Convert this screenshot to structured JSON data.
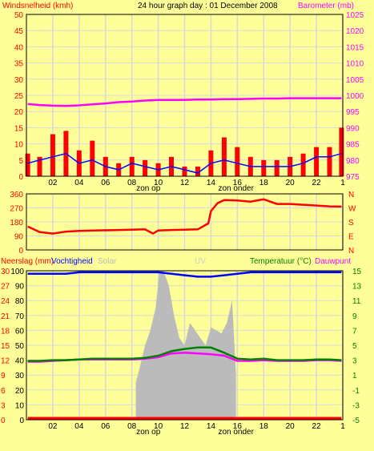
{
  "header": {
    "left_label": "Windsnelheid (kmh)",
    "title": "24 hour graph day : 01 December 2008",
    "right_label": "Barometer (mb)"
  },
  "colors": {
    "background": "#ffff99",
    "plot_background": "#ffff99",
    "grid": "#d8d8d8",
    "frame": "#000000",
    "wind_gust": "#ff0000",
    "wind_avg": "#0000ff",
    "barometer": "#ff00ff",
    "direction": "#ff0000",
    "rain": "#ff0000",
    "humidity": "#0000ff",
    "solar": "#bbbbbb",
    "uv": "#cccccc",
    "temperature": "#008000",
    "dewpoint": "#ff00ff",
    "left_text": "#ff0000",
    "right_text_barometer": "#ff00ff",
    "right_text_temp": "#008000"
  },
  "x_axis": {
    "tick_labels": [
      "02",
      "04",
      "06",
      "08",
      "10",
      "12",
      "14",
      "16",
      "18",
      "20",
      "22",
      "1"
    ],
    "sunrise_label": "zon op",
    "sunset_label": "zon onder",
    "sunrise_hour": 8.4,
    "sunset_hour": 15.9
  },
  "chart_data": [
    {
      "type": "line",
      "name": "wind-barometer",
      "x_hours": [
        0.1,
        1,
        2,
        3,
        4,
        5,
        6,
        7,
        8,
        9,
        10,
        11,
        12,
        13,
        14,
        15,
        16,
        17,
        18,
        19,
        20,
        21,
        22,
        23,
        23.9
      ],
      "left_axis": {
        "label": "Windsnelheid (kmh)",
        "ylim": [
          0,
          50
        ],
        "ticks": [
          0,
          5,
          10,
          15,
          20,
          25,
          30,
          35,
          40,
          45,
          50
        ]
      },
      "right_axis": {
        "label": "Barometer (mb)",
        "ylim": [
          975,
          1025
        ],
        "ticks": [
          975,
          980,
          985,
          990,
          995,
          1000,
          1005,
          1010,
          1015,
          1020,
          1025
        ]
      },
      "series": [
        {
          "name": "Windsnelheid",
          "axis": "left",
          "color": "#ff0000",
          "render": "bars",
          "values": [
            7,
            6,
            13,
            14,
            8,
            11,
            6,
            4,
            6,
            5,
            4,
            6,
            3,
            3,
            8,
            12,
            9,
            6,
            5,
            5,
            6,
            7,
            9,
            9,
            15
          ]
        },
        {
          "name": "Gemiddelde wind",
          "axis": "left",
          "color": "#0000ff",
          "render": "line",
          "values": [
            4,
            5,
            6,
            7,
            4,
            5,
            3,
            2,
            4,
            3,
            2,
            3,
            2,
            1,
            4,
            5,
            4,
            3,
            3,
            3,
            3,
            4,
            6,
            6,
            7
          ]
        },
        {
          "name": "Barometer",
          "axis": "right",
          "color": "#ff00ff",
          "render": "line",
          "values": [
            997.3,
            997.0,
            996.8,
            996.7,
            996.9,
            997.2,
            997.5,
            997.9,
            998.1,
            998.4,
            998.6,
            998.6,
            998.6,
            998.7,
            998.7,
            998.8,
            998.8,
            998.9,
            999.0,
            999.0,
            999.1,
            999.1,
            999.1,
            999.1,
            999.1
          ]
        }
      ]
    },
    {
      "type": "line",
      "name": "wind-direction",
      "x_hours": [
        0.1,
        1,
        2,
        3,
        4,
        5,
        6,
        7,
        8,
        9,
        9.6,
        10,
        11,
        12,
        13,
        13.8,
        14,
        14.5,
        15,
        16,
        17,
        18,
        19,
        20,
        21,
        22,
        23,
        23.9
      ],
      "left_axis": {
        "ylim": [
          0,
          360
        ],
        "ticks": [
          0,
          90,
          180,
          270,
          360
        ]
      },
      "right_axis": {
        "letters": [
          "N",
          "W",
          "S",
          "E",
          "N"
        ]
      },
      "series": [
        {
          "name": "Windrichting",
          "color": "#ff0000",
          "values": [
            150,
            115,
            105,
            118,
            122,
            125,
            126,
            128,
            130,
            132,
            105,
            125,
            128,
            130,
            132,
            170,
            250,
            300,
            320,
            318,
            310,
            325,
            295,
            295,
            290,
            285,
            280,
            278
          ]
        }
      ]
    },
    {
      "type": "line",
      "name": "rain-humidity-temperature",
      "x_hours": [
        0.1,
        1,
        2,
        3,
        4,
        5,
        6,
        7,
        8,
        9,
        10,
        11,
        12,
        13,
        14,
        15,
        16,
        17,
        18,
        19,
        20,
        21,
        22,
        23,
        23.9
      ],
      "header_labels": {
        "rain": "Neerslag (mm)",
        "humidity": "Vochtigheid",
        "solar": "Solar",
        "uv": "UV",
        "temperature": "Temperatuur (°C)",
        "dewpoint": "Dauwpunt"
      },
      "left_axis_rain": {
        "ticks": [
          0,
          3,
          6,
          9,
          12,
          15,
          18,
          21,
          24,
          27,
          30
        ]
      },
      "left_axis_humidity": {
        "ylim": [
          0,
          100
        ],
        "ticks": [
          0,
          10,
          20,
          30,
          40,
          50,
          60,
          70,
          80,
          90,
          100
        ]
      },
      "right_axis": {
        "label": "Temperatuur (°C)",
        "ylim": [
          -5,
          15
        ],
        "ticks": [
          -5,
          -3,
          -1,
          1,
          3,
          5,
          7,
          9,
          11,
          13,
          15
        ]
      },
      "series": [
        {
          "name": "Neerslag",
          "axis": "rain",
          "color": "#ff0000",
          "values": [
            0.1,
            0.1,
            0.1,
            0.1,
            0.1,
            0.1,
            0.3,
            0.3,
            0.3,
            0.3,
            0.3,
            0.3,
            0.3,
            0.3,
            0.3,
            0.3,
            0.3,
            0.3,
            0.3,
            0.3,
            0.3,
            0.3,
            0.3,
            0.3,
            0.1
          ]
        },
        {
          "name": "Vochtigheid",
          "axis": "humidity",
          "color": "#0000ff",
          "values": [
            98,
            98,
            98,
            98,
            99,
            99,
            99,
            99,
            99,
            99,
            99,
            98,
            97,
            96,
            96,
            97,
            98,
            99,
            99,
            99,
            99,
            99,
            99,
            99,
            99
          ]
        },
        {
          "name": "Solar",
          "axis": "humidity",
          "color": "#bbbbbb",
          "render": "area",
          "x_hours": [
            8.3,
            8.6,
            9.0,
            9.4,
            9.8,
            10.1,
            10.4,
            10.8,
            11.2,
            11.6,
            12.0,
            12.4,
            12.8,
            13.2,
            13.6,
            14.0,
            14.4,
            14.8,
            15.2,
            15.6,
            15.9
          ],
          "values": [
            25,
            35,
            50,
            60,
            75,
            100,
            100,
            90,
            70,
            55,
            50,
            65,
            60,
            55,
            50,
            62,
            60,
            58,
            65,
            80,
            30
          ]
        },
        {
          "name": "Temperatuur",
          "axis": "right",
          "color": "#008000",
          "values": [
            2.9,
            2.9,
            3.0,
            3.0,
            3.1,
            3.2,
            3.2,
            3.2,
            3.2,
            3.3,
            3.6,
            4.2,
            4.5,
            4.7,
            4.7,
            4.0,
            3.2,
            3.1,
            3.2,
            3.0,
            3.0,
            3.0,
            3.1,
            3.1,
            3.0
          ]
        },
        {
          "name": "Dauwpunt",
          "axis": "right",
          "color": "#ff00ff",
          "values": [
            2.8,
            2.8,
            2.9,
            3.0,
            3.1,
            3.1,
            3.1,
            3.1,
            3.1,
            3.2,
            3.4,
            3.9,
            4.0,
            3.9,
            3.8,
            3.6,
            2.9,
            2.9,
            3.0,
            2.9,
            2.9,
            2.9,
            3.0,
            3.0,
            2.9
          ]
        }
      ]
    }
  ]
}
